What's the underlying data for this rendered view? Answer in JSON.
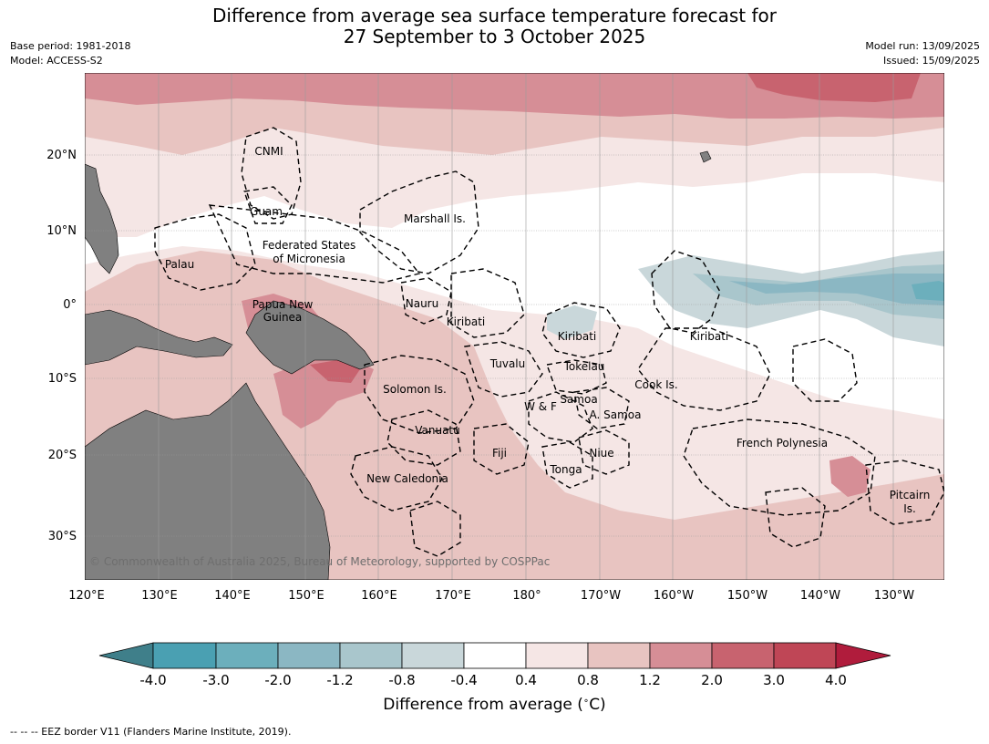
{
  "title": {
    "line1": "Difference from average sea surface temperature forecast for",
    "line2": "27 September to 3 October 2025"
  },
  "meta": {
    "base_period": "Base period: 1981-2018",
    "model": "Model: ACCESS-S2",
    "model_run": "Model run: 13/09/2025",
    "issued": "Issued: 15/09/2025"
  },
  "map": {
    "lon_ticks": [
      "120°E",
      "130°E",
      "140°E",
      "150°E",
      "160°E",
      "170°E",
      "180°",
      "170°W",
      "160°W",
      "150°W",
      "140°W",
      "130°W"
    ],
    "lat_ticks": [
      "20°N",
      "10°N",
      "0°",
      "10°S",
      "20°S",
      "30°S"
    ],
    "labels": {
      "cnmi": "CNMI",
      "guam": "Guam",
      "marshall": "Marshall Is.",
      "fsm_1": "Federated States",
      "fsm_2": "of Micronesia",
      "palau": "Palau",
      "png_1": "Papua New",
      "png_2": "Guinea",
      "nauru": "Nauru",
      "kiribati_w": "Kiribati",
      "kiribati_c": "Kiribati",
      "kiribati_e": "Kiribati",
      "tuvalu": "Tuvalu",
      "tokelau": "Tokelau",
      "cook": "Cook Is.",
      "solomon": "Solomon Is.",
      "samoa": "Samoa",
      "wf": "W & F",
      "asamoa": "A. Samoa",
      "vanuatu": "Vanuatu",
      "fiji": "Fiji",
      "niue": "Niue",
      "tonga": "Tonga",
      "fp": "French Polynesia",
      "newcal": "New Caledonia",
      "pitcairn_1": "Pitcairn",
      "pitcairn_2": "Is."
    },
    "copyright": "© Commonwealth of Australia 2025, Bureau of Meteorology, supported by COSPPac",
    "land_color": "#808080"
  },
  "colorbar": {
    "tick_labels": [
      "-4.0",
      "-3.0",
      "-2.0",
      "-1.2",
      "-0.8",
      "-0.4",
      "0.4",
      "0.8",
      "1.2",
      "2.0",
      "3.0",
      "4.0"
    ],
    "colors": [
      "#3f7f8a",
      "#4aa0b2",
      "#6cafbc",
      "#8bb7c3",
      "#a9c6cc",
      "#c9d7da",
      "#ffffff",
      "#f5e6e5",
      "#e8c4c1",
      "#d68e96",
      "#c8636f",
      "#bf4656",
      "#b01c3c"
    ],
    "label": "Difference from average ($^\\circ$C)",
    "label_text": "Difference from average (",
    "label_unit": "C)"
  },
  "footer": "--  --  -- EEZ border V11 (Flanders Marine Institute, 2019)."
}
